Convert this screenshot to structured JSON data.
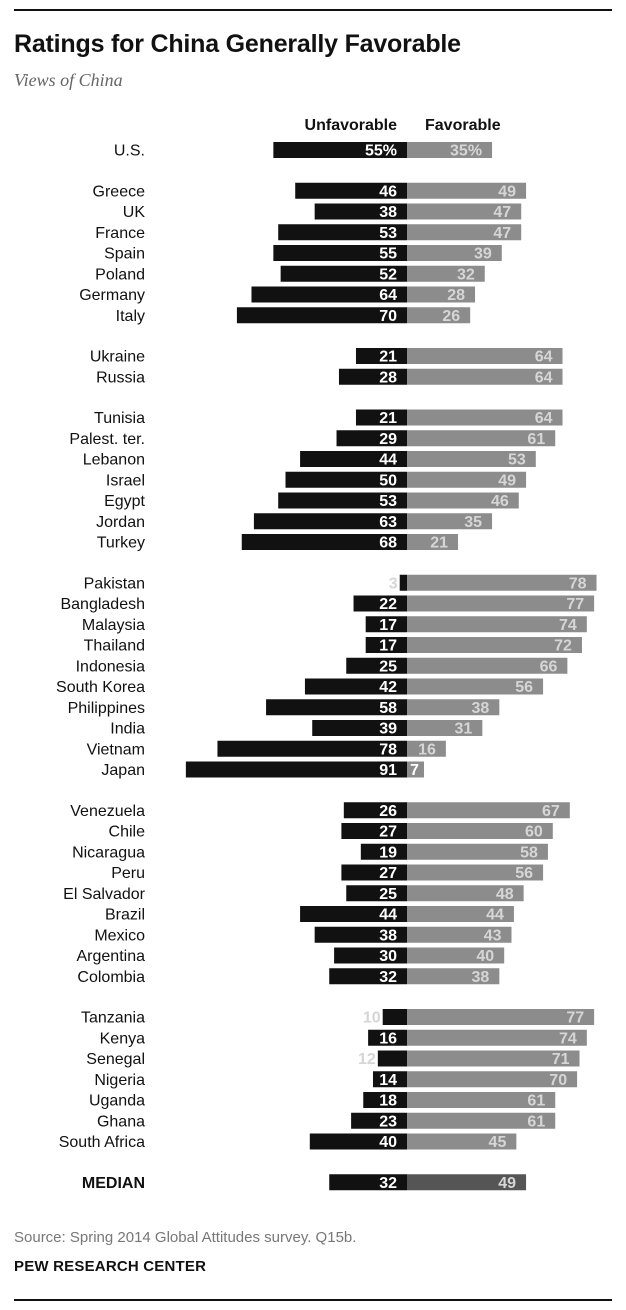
{
  "title": "Ratings for China Generally Favorable",
  "subtitle": "Views of China",
  "source": "Source: Spring 2014 Global Attitudes survey. Q15b.",
  "brand": "PEW RESEARCH CENTER",
  "colors": {
    "unfavorable": "#111111",
    "favorable": "#8c8c8c",
    "median_favorable": "#555555",
    "label_light": "#d6d6d6"
  },
  "chart_data": {
    "type": "bar",
    "orientation": "horizontal-diverging",
    "series": [
      {
        "name": "Unfavorable",
        "values": [
          55,
          46,
          38,
          53,
          55,
          52,
          64,
          70,
          21,
          28,
          21,
          29,
          44,
          50,
          53,
          63,
          68,
          3,
          22,
          17,
          17,
          25,
          42,
          58,
          39,
          78,
          91,
          26,
          27,
          19,
          27,
          25,
          44,
          38,
          30,
          32,
          10,
          16,
          12,
          14,
          18,
          23,
          40,
          32
        ]
      },
      {
        "name": "Favorable",
        "values": [
          35,
          49,
          47,
          47,
          39,
          32,
          28,
          26,
          64,
          64,
          64,
          61,
          53,
          49,
          46,
          35,
          21,
          78,
          77,
          74,
          72,
          66,
          56,
          38,
          31,
          16,
          7,
          67,
          60,
          58,
          56,
          48,
          44,
          43,
          40,
          38,
          77,
          74,
          71,
          70,
          61,
          61,
          45,
          49
        ]
      }
    ],
    "categories": [
      "U.S.",
      "Greece",
      "UK",
      "France",
      "Spain",
      "Poland",
      "Germany",
      "Italy",
      "Ukraine",
      "Russia",
      "Tunisia",
      "Palest. ter.",
      "Lebanon",
      "Israel",
      "Egypt",
      "Jordan",
      "Turkey",
      "Pakistan",
      "Bangladesh",
      "Malaysia",
      "Thailand",
      "Indonesia",
      "South Korea",
      "Philippines",
      "India",
      "Vietnam",
      "Japan",
      "Venezuela",
      "Chile",
      "Nicaragua",
      "Peru",
      "El Salvador",
      "Brazil",
      "Mexico",
      "Argentina",
      "Colombia",
      "Tanzania",
      "Kenya",
      "Senegal",
      "Nigeria",
      "Uganda",
      "Ghana",
      "South Africa",
      "MEDIAN"
    ],
    "groups": [
      1,
      2,
      2,
      2,
      2,
      2,
      2,
      2,
      3,
      3,
      4,
      4,
      4,
      4,
      4,
      4,
      4,
      5,
      5,
      5,
      5,
      5,
      5,
      5,
      5,
      5,
      5,
      6,
      6,
      6,
      6,
      6,
      6,
      6,
      6,
      6,
      7,
      7,
      7,
      7,
      7,
      7,
      7,
      8
    ],
    "value_labels": {
      "unfavorable": [
        "55%",
        "46",
        "38",
        "53",
        "55",
        "52",
        "64",
        "70",
        "21",
        "28",
        "21",
        "29",
        "44",
        "50",
        "53",
        "63",
        "68",
        "3",
        "22",
        "17",
        "17",
        "25",
        "42",
        "58",
        "39",
        "78",
        "91",
        "26",
        "27",
        "19",
        "27",
        "25",
        "44",
        "38",
        "30",
        "32",
        "10",
        "16",
        "12",
        "14",
        "18",
        "23",
        "40",
        "32"
      ],
      "favorable": [
        "35%",
        "49",
        "47",
        "47",
        "39",
        "32",
        "28",
        "26",
        "64",
        "64",
        "64",
        "61",
        "53",
        "49",
        "46",
        "35",
        "21",
        "78",
        "77",
        "74",
        "72",
        "66",
        "56",
        "38",
        "31",
        "16",
        "7",
        "67",
        "60",
        "58",
        "56",
        "48",
        "44",
        "43",
        "40",
        "38",
        "77",
        "74",
        "71",
        "70",
        "61",
        "61",
        "45",
        "49"
      ]
    },
    "legend": [
      "Unfavorable",
      "Favorable"
    ],
    "legend_position": "top",
    "xlim": [
      -100,
      100
    ],
    "grid": false
  }
}
